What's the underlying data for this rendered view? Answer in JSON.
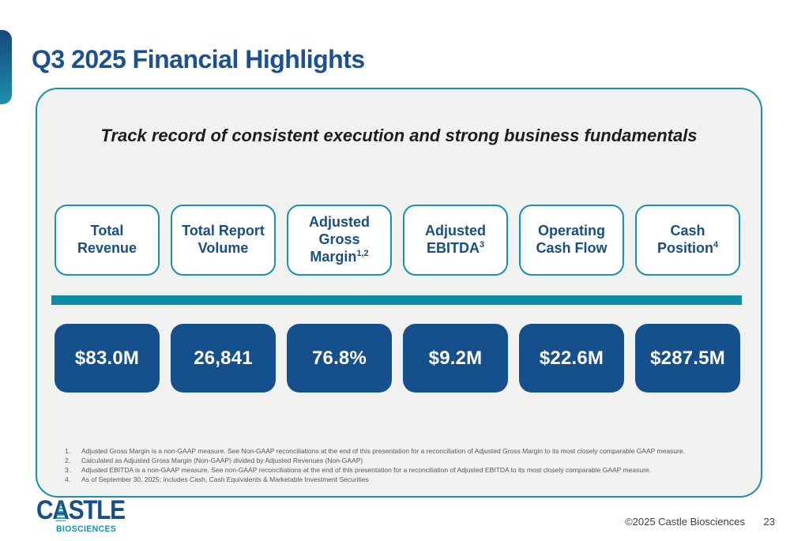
{
  "slide": {
    "title": "Q3 2025 Financial Highlights",
    "subtitle": "Track record of consistent execution and strong business fundamentals",
    "metrics": [
      {
        "label": "Total Revenue",
        "sup": "",
        "value": "$83.0M"
      },
      {
        "label": "Total Report Volume",
        "sup": "",
        "value": "26,841"
      },
      {
        "label": "Adjusted Gross Margin",
        "sup": "1,2",
        "value": "76.8%"
      },
      {
        "label": "Adjusted EBITDA",
        "sup": "3",
        "value": "$9.2M"
      },
      {
        "label": "Operating Cash Flow",
        "sup": "",
        "value": "$22.6M"
      },
      {
        "label": "Cash Position",
        "sup": "4",
        "value": "$287.5M"
      }
    ],
    "footnotes": [
      {
        "num": "1.",
        "text": "Adjusted Gross Margin is a non-GAAP measure. See Non-GAAP reconciliations at the end of this presentation for a reconciliation of Adjusted Gross Margin to its most closely comparable GAAP measure."
      },
      {
        "num": "2.",
        "text": "Calculated as Adjusted Gross Margin (Non-GAAP) divided by Adjusted Revenues (Non-GAAP)"
      },
      {
        "num": "3.",
        "text": "Adjusted EBITDA is a non-GAAP measure. See non-GAAP reconciliations at the end of this presentation for a reconciliation of Adjusted EBITDA to its most closely comparable GAAP measure."
      },
      {
        "num": "4.",
        "text": "As of September 30, 2025; includes Cash, Cash Equivalents & Marketable Investment Securities"
      }
    ],
    "logo": {
      "word_c": "C",
      "word_a": "A",
      "word_rest": "STLE",
      "sub": "BIOSCIENCES"
    },
    "footer": {
      "copyright": "©2025 Castle Biosciences",
      "page": "23"
    },
    "colors": {
      "title_blue": "#1A5291",
      "label_blue": "#174E87",
      "value_box_blue": "#15508D",
      "teal_bar": "#0D8CA6",
      "teal_border": "#1791AE",
      "panel_bg": "#F1F1F0"
    }
  }
}
